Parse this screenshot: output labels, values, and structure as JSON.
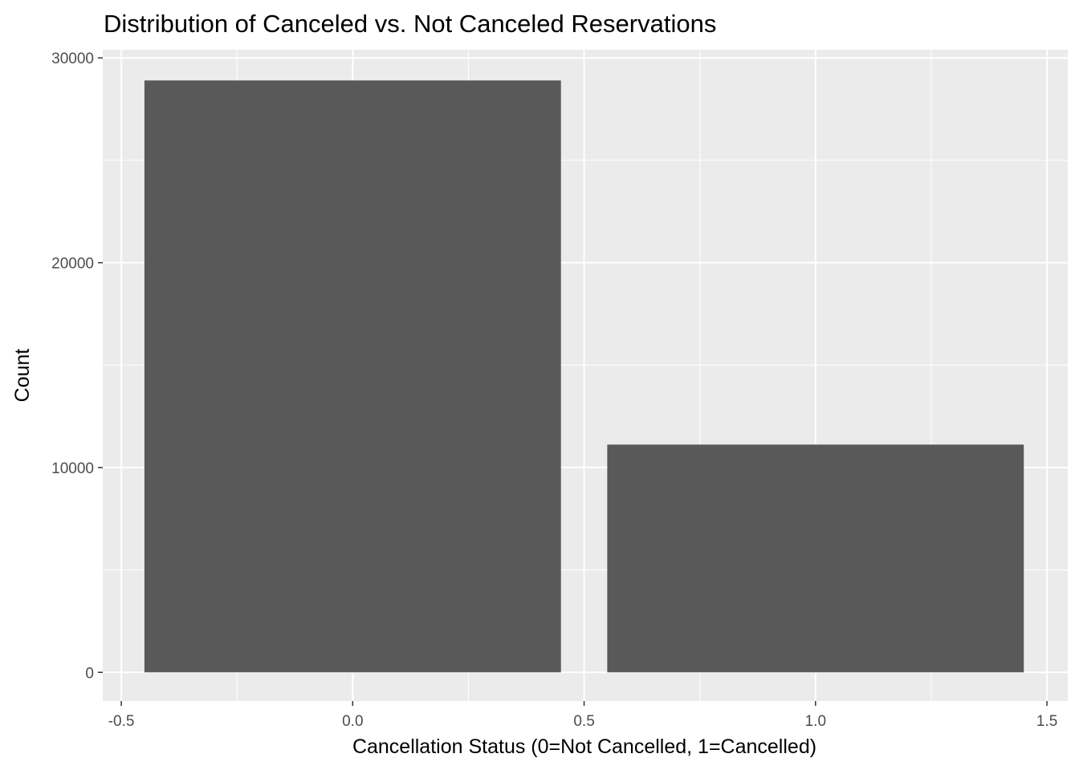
{
  "chart_data": {
    "type": "bar",
    "title": "Distribution of Canceled vs. Not Canceled Reservations",
    "xlabel": "Cancellation Status (0=Not Cancelled, 1=Cancelled)",
    "ylabel": "Count",
    "x": [
      0,
      1
    ],
    "values": [
      28900,
      11120
    ],
    "bar_width": 0.9,
    "xlim": [
      -0.54,
      1.545
    ],
    "ylim": [
      -1400,
      30400
    ],
    "x_ticks": [
      -0.5,
      0.0,
      0.5,
      1.0,
      1.5
    ],
    "x_tick_labels": [
      "-0.5",
      "0.0",
      "0.5",
      "1.0",
      "1.5"
    ],
    "x_minor_ticks": [
      -0.25,
      0.25,
      0.75,
      1.25
    ],
    "y_ticks": [
      0,
      10000,
      20000,
      30000
    ],
    "y_tick_labels": [
      "0",
      "10000",
      "20000",
      "30000"
    ],
    "y_minor_ticks": [
      5000,
      15000,
      25000
    ],
    "grid": true,
    "legend": "none",
    "colors": {
      "bar": "#595959",
      "panel": "#ebebeb",
      "grid": "#ffffff",
      "tick_text": "#4d4d4d",
      "tick_mark": "#333333"
    }
  }
}
